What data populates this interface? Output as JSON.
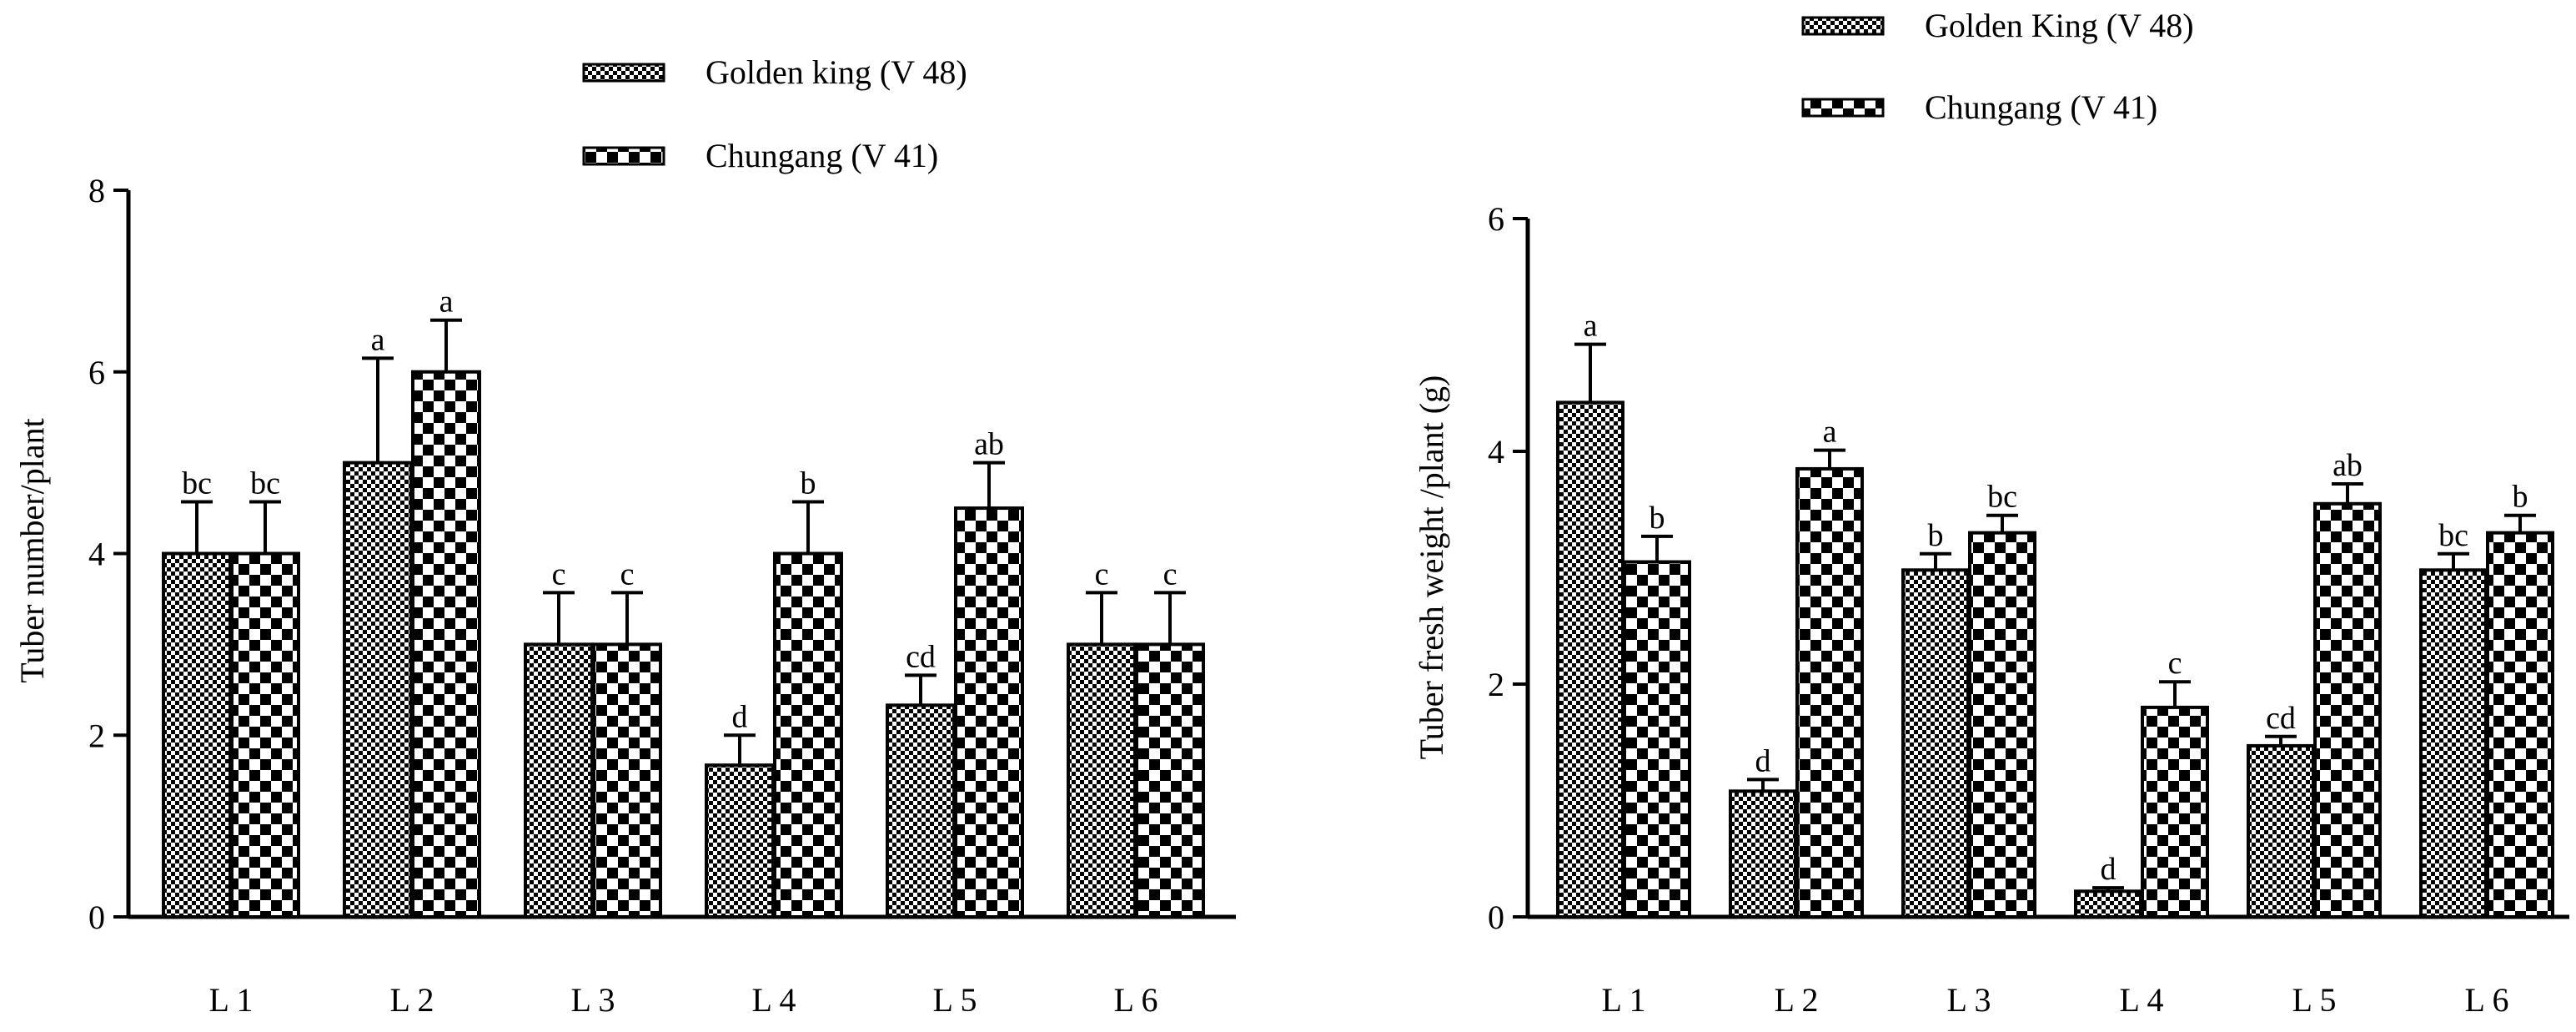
{
  "chart_data": [
    {
      "type": "bar",
      "categories": [
        "L 1",
        "L 2",
        "L 3",
        "L 4",
        "L 5",
        "L 6"
      ],
      "ylabel": "Tuber number/plant",
      "xlabel": "",
      "ylim": [
        0,
        8
      ],
      "yticks": [
        "0",
        "2",
        "4",
        "6",
        "8"
      ],
      "legend_position": "top-center",
      "series": [
        {
          "name": "Golden king (V 48)",
          "pattern": "fine-checker",
          "values": [
            4.0,
            5.0,
            3.0,
            1.67,
            2.33,
            3.0
          ],
          "errors": [
            0.57,
            1.15,
            0.57,
            0.33,
            0.33,
            0.57
          ],
          "labels": [
            "bc",
            "a",
            "c",
            "d",
            "cd",
            "c"
          ]
        },
        {
          "name": "Chungang (V 41)",
          "pattern": "coarse-checker",
          "values": [
            4.0,
            6.0,
            3.0,
            4.0,
            4.5,
            3.0
          ],
          "errors": [
            0.57,
            0.57,
            0.57,
            0.57,
            0.5,
            0.57
          ],
          "labels": [
            "bc",
            "a",
            "c",
            "b",
            "ab",
            "c"
          ]
        }
      ]
    },
    {
      "type": "bar",
      "categories": [
        "L 1",
        "L 2",
        "L 3",
        "L 4",
        "L 5",
        "L 6"
      ],
      "ylabel": "Tuber fresh weight /plant (g)",
      "xlabel": "",
      "ylim": [
        0,
        6
      ],
      "yticks": [
        "0",
        "2",
        "4",
        "6"
      ],
      "legend_position": "top-center",
      "series": [
        {
          "name": "Golden King (V 48)",
          "pattern": "fine-checker",
          "values": [
            4.42,
            1.08,
            2.98,
            0.22,
            1.47,
            2.98
          ],
          "errors": [
            0.5,
            0.1,
            0.14,
            0.03,
            0.08,
            0.14
          ],
          "labels": [
            "a",
            "d",
            "b",
            "d",
            "cd",
            "bc"
          ]
        },
        {
          "name": "Chungang (V 41)",
          "pattern": "coarse-checker",
          "values": [
            3.05,
            3.85,
            3.3,
            1.8,
            3.55,
            3.3
          ],
          "errors": [
            0.22,
            0.16,
            0.15,
            0.22,
            0.17,
            0.15
          ],
          "labels": [
            "b",
            "a",
            "bc",
            "c",
            "ab",
            "b"
          ]
        }
      ]
    }
  ]
}
